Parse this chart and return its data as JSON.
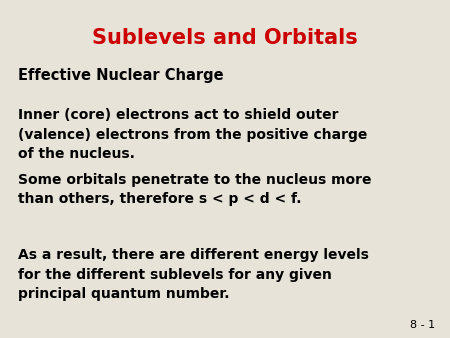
{
  "title": "Sublevels and Orbitals",
  "title_color": "#cc0000",
  "title_fontsize": 15,
  "background_color": "#e8e3d8",
  "slide_number": "8 - 1",
  "heading": "Effective Nuclear Charge",
  "heading_fontsize": 10.5,
  "body_fontsize": 10,
  "body_color": "#000000",
  "paragraphs": [
    "Inner (core) electrons act to shield outer\n(valence) electrons from the positive charge\nof the nucleus.",
    "Some orbitals penetrate to the nucleus more\nthan others, therefore s < p < d < f.",
    "As a result, there are different energy levels\nfor the different sublevels for any given\nprincipal quantum number."
  ]
}
